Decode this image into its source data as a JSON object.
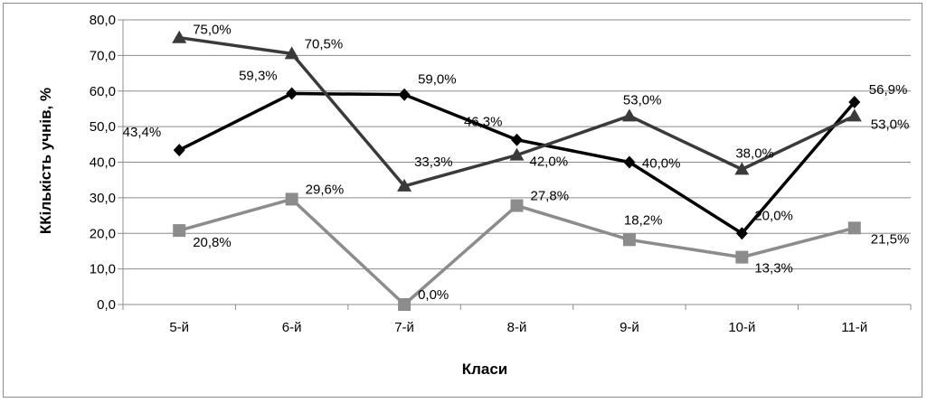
{
  "chart_data": {
    "type": "line",
    "categories": [
      "5-й",
      "6-й",
      "7-й",
      "8-й",
      "9-й",
      "10-й",
      "11-й"
    ],
    "xlabel": "Класи",
    "ylabel": "ККількість учнів, %",
    "ylim": [
      0,
      80
    ],
    "ytick_step": 10,
    "ytick_labels": [
      "0,0",
      "10,0",
      "20,0",
      "30,0",
      "40,0",
      "50,0",
      "60,0",
      "70,0",
      "80,0"
    ],
    "grid": true,
    "legend": "none",
    "series": [
      {
        "marker": "diamond",
        "color": "#000000",
        "values": [
          43.4,
          59.3,
          59.0,
          46.3,
          40.0,
          20.0,
          56.9
        ],
        "labels": [
          "43,4%",
          "59,3%",
          "59,0%",
          "46,3%",
          "40,0%",
          "20,0%",
          "56,9%"
        ]
      },
      {
        "marker": "square",
        "color": "#8c8c8c",
        "values": [
          20.8,
          29.6,
          0.0,
          27.8,
          18.2,
          13.3,
          21.5
        ],
        "labels": [
          "20,8%",
          "29,6%",
          "0,0%",
          "27,8%",
          "18,2%",
          "13,3%",
          "21,5%"
        ]
      },
      {
        "marker": "triangle",
        "color": "#3a3a3a",
        "values": [
          75.0,
          70.5,
          33.3,
          42.0,
          53.0,
          38.0,
          53.0
        ],
        "labels": [
          "75,0%",
          "70,5%",
          "33,3%",
          "42,0%",
          "53,0%",
          "38,0%",
          "53,0%"
        ]
      }
    ]
  }
}
